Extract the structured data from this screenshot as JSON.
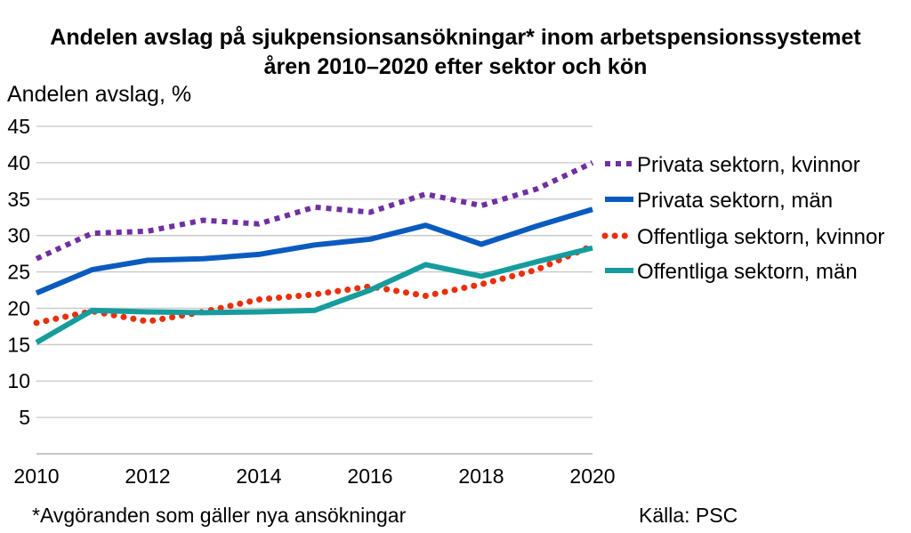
{
  "chart_data": {
    "type": "line",
    "title_lines": [
      "Andelen avslag på sjukpensionsansökningar* inom arbetspensionssystemet",
      "åren 2010–2020 efter sektor och kön"
    ],
    "ylabel": "Andelen avslag, %",
    "xlabel": "",
    "x": [
      2010,
      2011,
      2012,
      2013,
      2014,
      2015,
      2016,
      2017,
      2018,
      2019,
      2020
    ],
    "x_tick_labels": [
      "2010",
      "2012",
      "2014",
      "2016",
      "2018",
      "2020"
    ],
    "x_ticks": [
      2010,
      2012,
      2014,
      2016,
      2018,
      2020
    ],
    "y_ticks": [
      5,
      10,
      15,
      20,
      25,
      30,
      35,
      40,
      45
    ],
    "y_tick_labels": [
      "5",
      "10",
      "15",
      "20",
      "25",
      "30",
      "35",
      "40",
      "45"
    ],
    "xlim": [
      2010,
      2020
    ],
    "ylim": [
      0,
      45
    ],
    "grid": "horizontal",
    "legend_position": "right",
    "series": [
      {
        "name": "Privata sektorn, kvinnor",
        "color": "#7030A0",
        "style": "dotted-square",
        "values": [
          26.8,
          30.3,
          30.6,
          32.1,
          31.6,
          33.9,
          33.2,
          35.7,
          34.1,
          36.4,
          40.0
        ]
      },
      {
        "name": "Privata sektorn, män",
        "color": "#0B5BBF",
        "style": "solid",
        "values": [
          22.1,
          25.3,
          26.6,
          26.8,
          27.4,
          28.7,
          29.5,
          31.4,
          28.8,
          31.3,
          33.6
        ]
      },
      {
        "name": "Offentliga sektorn, kvinnor",
        "color": "#E8300E",
        "style": "dotted-round",
        "values": [
          18.0,
          19.6,
          18.2,
          19.5,
          21.2,
          21.9,
          23.0,
          21.7,
          23.3,
          25.3,
          28.6
        ]
      },
      {
        "name": "Offentliga sektorn, män",
        "color": "#169C9C",
        "style": "solid",
        "values": [
          15.3,
          19.7,
          19.5,
          19.4,
          19.5,
          19.7,
          22.5,
          26.0,
          24.4,
          26.4,
          28.3
        ]
      }
    ]
  },
  "footnote": "*Avgöranden som gäller nya ansökningar",
  "source": "Källa: PSC"
}
